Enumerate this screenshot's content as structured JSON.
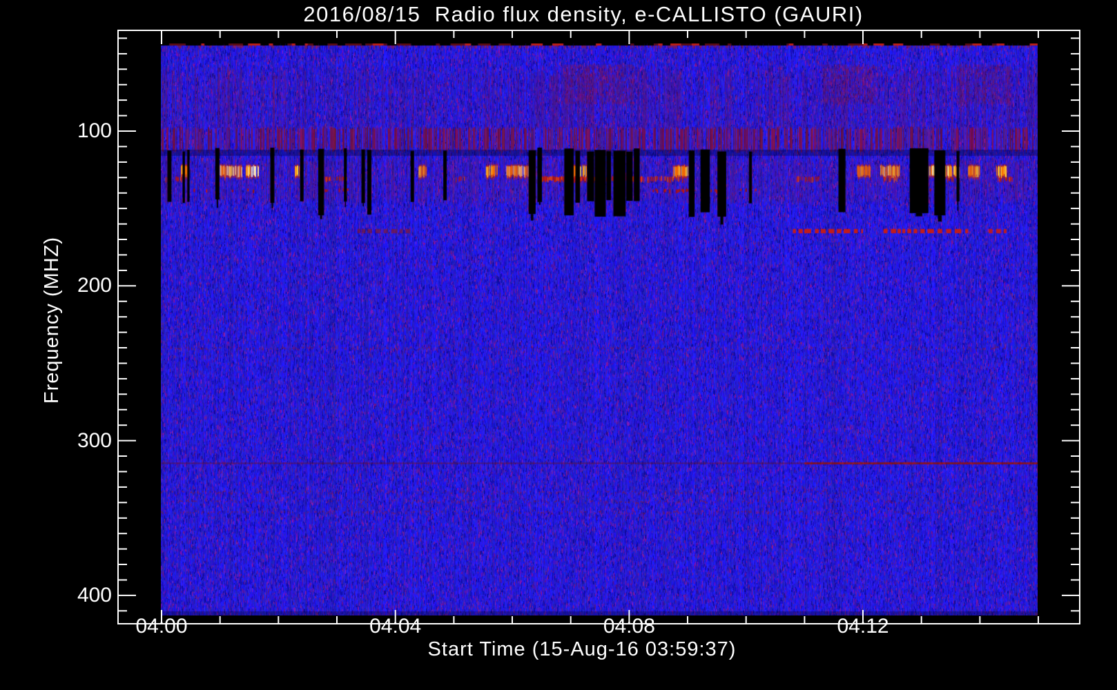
{
  "title": "2016/08/15  Radio flux density, e-CALLISTO (GAURI)",
  "colors": {
    "background": "#000000",
    "axis": "#ffffff",
    "text": "#ffffff",
    "quiet_blue": "#2222e0",
    "noise_purple": "#7a1c8c",
    "maroon_band": "#8c1c3c",
    "rfi_red": "#cc1a10",
    "burst_orange": "#ff7a00",
    "burst_yellow": "#ffd83a",
    "burst_white": "#fff6cc",
    "dropout_black": "#000000"
  },
  "chart_data": {
    "type": "heatmap",
    "subtype": "radio-spectrogram",
    "title": "2016/08/15  Radio flux density, e-CALLISTO (GAURI)",
    "xlabel": "Start Time (15-Aug-16 03:59:37)",
    "ylabel": "Frequency (MHZ)",
    "instrument": "e-CALLISTO (GAURI)",
    "date": "2016/08/15",
    "start_time": "03:59:37",
    "x_unit": "minutes after 04:00 UT",
    "x_range_min": [
      0,
      15
    ],
    "x_major_ticks": [
      {
        "t": 0,
        "label": "04:00"
      },
      {
        "t": 4,
        "label": "04:04"
      },
      {
        "t": 8,
        "label": "04:08"
      },
      {
        "t": 12,
        "label": "04:12"
      }
    ],
    "x_minor_step_min": 1,
    "y_range_mhz": [
      42,
      412
    ],
    "y_major_ticks": [
      {
        "f": 100,
        "label": "100"
      },
      {
        "f": 200,
        "label": "200"
      },
      {
        "f": 300,
        "label": "300"
      },
      {
        "f": 400,
        "label": "400"
      }
    ],
    "y_minor_step_mhz": 10,
    "y_axis_inverted": true,
    "grid": false,
    "legend": false,
    "features": {
      "background": "quiet Sun blue noise with vertical scan striping and sparse purple speckle",
      "top_edge_marks_mhz": [
        42,
        45
      ],
      "upper_streak_band_mhz": [
        57,
        98
      ],
      "upper_streak_segments": [
        {
          "t0": 0.0,
          "t1": 2.3,
          "density": 0.55
        },
        {
          "t0": 2.3,
          "t1": 5.3,
          "density": 0.35
        },
        {
          "t0": 5.3,
          "t1": 6.3,
          "density": 0.6
        },
        {
          "t0": 6.3,
          "t1": 8.8,
          "density": 0.8
        },
        {
          "t0": 8.8,
          "t1": 10.4,
          "density": 0.5
        },
        {
          "t0": 10.4,
          "t1": 15.0,
          "density": 0.7
        }
      ],
      "red_patches_mhz_57_82": [
        {
          "t0": 6.9,
          "t1": 8.1
        },
        {
          "t0": 11.3,
          "t1": 12.2
        },
        {
          "t0": 13.6,
          "t1": 14.5
        }
      ],
      "maroon_stripe_band_mhz": [
        98,
        112
      ],
      "interference_band_mhz": [
        116,
        148
      ],
      "bright_blob_row_mhz": [
        122,
        128
      ],
      "bright_blobs": [
        {
          "t0": 0.33,
          "t1": 0.46,
          "i": 0.6
        },
        {
          "t0": 1.0,
          "t1": 1.38,
          "i": 1.0
        },
        {
          "t0": 1.44,
          "t1": 1.66,
          "i": 1.0
        },
        {
          "t0": 2.28,
          "t1": 2.4,
          "i": 0.7
        },
        {
          "t0": 4.4,
          "t1": 4.52,
          "i": 0.7
        },
        {
          "t0": 5.55,
          "t1": 5.75,
          "i": 0.8
        },
        {
          "t0": 5.9,
          "t1": 6.3,
          "i": 1.0
        },
        {
          "t0": 7.05,
          "t1": 7.3,
          "i": 0.9
        },
        {
          "t0": 8.75,
          "t1": 9.0,
          "i": 0.8
        },
        {
          "t0": 11.9,
          "t1": 12.12,
          "i": 0.8
        },
        {
          "t0": 12.3,
          "t1": 12.62,
          "i": 1.0
        },
        {
          "t0": 13.1,
          "t1": 13.65,
          "i": 1.0
        },
        {
          "t0": 13.8,
          "t1": 14.0,
          "i": 0.8
        },
        {
          "t0": 14.28,
          "t1": 14.45,
          "i": 0.6
        }
      ],
      "red_streak_row_mhz": [
        129,
        133
      ],
      "red_streaks": [
        {
          "t0": 0.05,
          "t1": 0.35,
          "d": 0.3
        },
        {
          "t0": 2.75,
          "t1": 3.2,
          "d": 0.5
        },
        {
          "t0": 5.0,
          "t1": 5.2,
          "d": 0.4
        },
        {
          "t0": 6.45,
          "t1": 8.25,
          "d": 0.95
        },
        {
          "t0": 8.3,
          "t1": 8.95,
          "d": 0.6
        },
        {
          "t0": 10.85,
          "t1": 11.25,
          "d": 0.5
        },
        {
          "t0": 12.35,
          "t1": 12.65,
          "d": 0.5
        },
        {
          "t0": 13.3,
          "t1": 13.55,
          "d": 0.5
        },
        {
          "t0": 14.3,
          "t1": 14.55,
          "d": 0.6
        }
      ],
      "red_dot_row_mhz": [
        137,
        140.5
      ],
      "red_dots": [
        {
          "t0": 0.05,
          "t1": 1.6,
          "d": 0.25
        },
        {
          "t0": 2.7,
          "t1": 3.3,
          "d": 0.5
        },
        {
          "t0": 8.4,
          "t1": 9.6,
          "d": 0.4
        },
        {
          "t0": 9.8,
          "t1": 10.2,
          "d": 0.3
        },
        {
          "t0": 13.0,
          "t1": 13.3,
          "d": 0.3
        }
      ],
      "dropout_bars": [
        {
          "t0": 0.1,
          "t1": 0.17
        },
        {
          "t0": 0.36,
          "t1": 0.4
        },
        {
          "t0": 0.44,
          "t1": 0.48
        },
        {
          "t0": 0.92,
          "t1": 0.99
        },
        {
          "t0": 1.86,
          "t1": 1.93
        },
        {
          "t0": 2.37,
          "t1": 2.43
        },
        {
          "t0": 2.68,
          "t1": 2.78,
          "tall": true
        },
        {
          "t0": 3.12,
          "t1": 3.17
        },
        {
          "t0": 3.42,
          "t1": 3.48
        },
        {
          "t0": 3.52,
          "t1": 3.59,
          "tall": true
        },
        {
          "t0": 4.26,
          "t1": 4.32
        },
        {
          "t0": 4.82,
          "t1": 4.88
        },
        {
          "t0": 6.28,
          "t1": 6.4,
          "tall": true
        },
        {
          "t0": 6.43,
          "t1": 6.51
        },
        {
          "t0": 6.89,
          "t1": 7.05,
          "tall": true
        },
        {
          "t0": 7.08,
          "t1": 7.16
        },
        {
          "t0": 7.28,
          "t1": 7.4
        },
        {
          "t0": 7.41,
          "t1": 7.6,
          "tall": true
        },
        {
          "t0": 7.61,
          "t1": 7.69
        },
        {
          "t0": 7.73,
          "t1": 7.94,
          "tall": true
        },
        {
          "t0": 7.95,
          "t1": 8.06
        },
        {
          "t0": 8.08,
          "t1": 8.18
        },
        {
          "t0": 9.02,
          "t1": 9.12,
          "tall": true
        },
        {
          "t0": 9.22,
          "t1": 9.38,
          "tall": true
        },
        {
          "t0": 9.51,
          "t1": 9.66,
          "tall": true
        },
        {
          "t0": 10.05,
          "t1": 10.1
        },
        {
          "t0": 11.58,
          "t1": 11.7,
          "tall": true
        },
        {
          "t0": 12.8,
          "t1": 13.12,
          "tall": true
        },
        {
          "t0": 13.22,
          "t1": 13.41,
          "tall": true
        },
        {
          "t0": 13.6,
          "t1": 13.65
        }
      ],
      "rfi_line_164mhz_segments": [
        {
          "t0": 3.35,
          "t1": 4.3,
          "a": 0.45
        },
        {
          "t0": 10.8,
          "t1": 12.0,
          "a": 0.95
        },
        {
          "t0": 12.35,
          "t1": 13.8,
          "a": 0.95
        },
        {
          "t0": 14.15,
          "t1": 14.5,
          "a": 0.9
        }
      ],
      "rfi_line_315mhz": {
        "faint_t0": 0,
        "faint_t1": 15,
        "strong_t0": 11.0,
        "strong_t1": 15.0
      },
      "speckle_rows_mhz": [
        240,
        333,
        339,
        346
      ]
    }
  }
}
